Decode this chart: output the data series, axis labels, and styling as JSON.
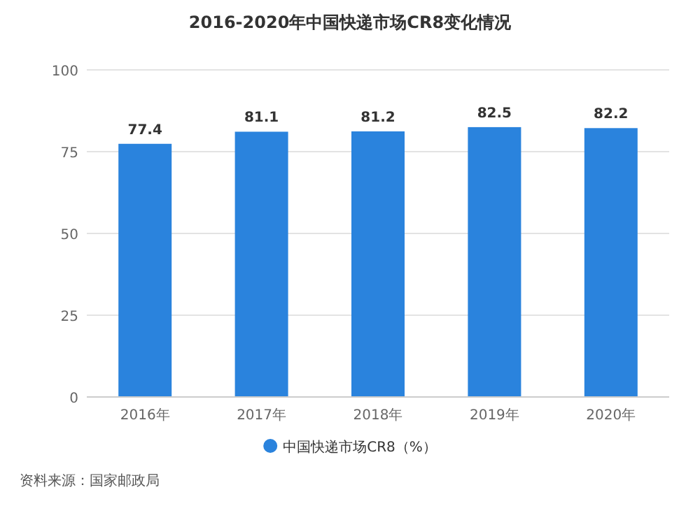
{
  "chart_data": {
    "type": "bar",
    "title": "2016-2020年中国快递市场CR8变化情况",
    "categories": [
      "2016年",
      "2017年",
      "2018年",
      "2019年",
      "2020年"
    ],
    "series": [
      {
        "name": "中国快递市场CR8（%）",
        "color": "#2a83dd",
        "values": [
          77.4,
          81.1,
          81.2,
          82.5,
          82.2
        ]
      }
    ],
    "ylim": [
      0,
      100
    ],
    "yticks": [
      0,
      25,
      50,
      75,
      100
    ],
    "grid": "y",
    "legend": "bottom",
    "data_labels": true,
    "annotations": [
      "资料来源：国家邮政局"
    ]
  }
}
